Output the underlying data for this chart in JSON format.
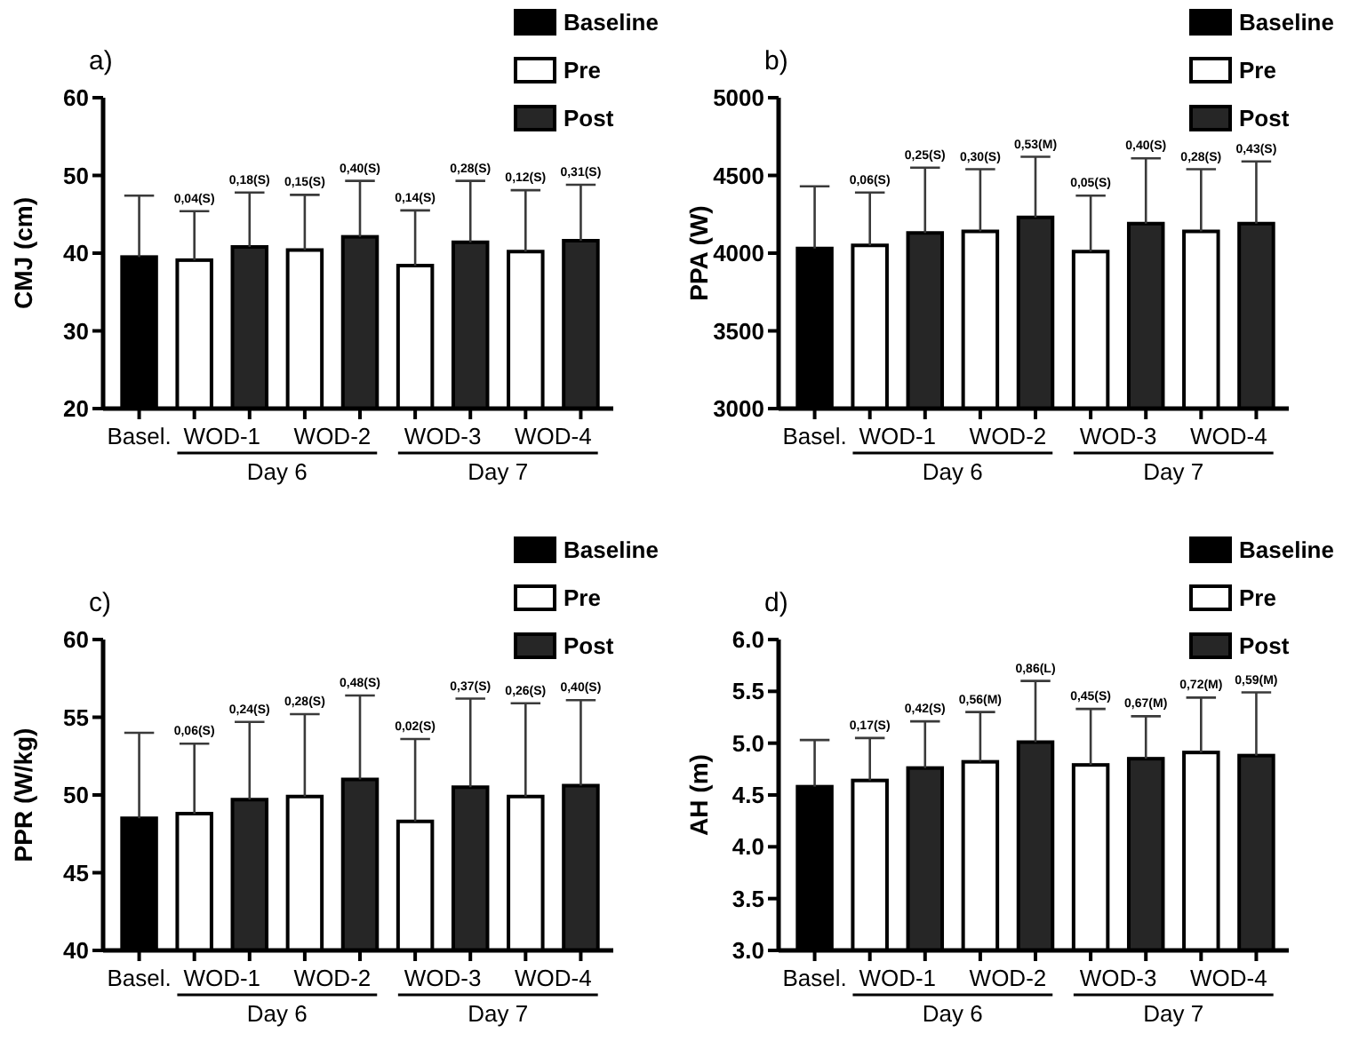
{
  "chart_data": [
    {
      "type": "bar",
      "title": "a)",
      "ylabel": "CMJ (cm)",
      "categories": [
        "Basel.",
        "WOD-1",
        "WOD-2",
        "WOD-3",
        "WOD-4"
      ],
      "ylim": [
        20,
        60
      ],
      "yticks": [
        20,
        30,
        40,
        50,
        60
      ],
      "legend": "top right",
      "annotations": [
        "Day 6",
        "Day 7",
        "0,04(S)",
        "0,18(S)",
        "0,15(S)",
        "0,40(S)",
        "0,14(S)",
        "0,28(S)",
        "0,12(S)",
        "0,31(S)"
      ],
      "series": [
        {
          "name": "Baseline",
          "color": "#000000",
          "values": [
            39.5,
            null,
            null,
            null,
            null
          ],
          "errors": [
            7.9,
            null,
            null,
            null,
            null
          ]
        },
        {
          "name": "Pre",
          "color": "#ffffff",
          "values": [
            null,
            39.1,
            40.4,
            38.4,
            40.2
          ],
          "errors": [
            null,
            6.3,
            7.1,
            7.1,
            7.9
          ]
        },
        {
          "name": "Post",
          "color": "#262626",
          "values": [
            null,
            40.8,
            42.1,
            41.4,
            41.6
          ],
          "errors": [
            null,
            7.0,
            7.2,
            7.9,
            7.2
          ]
        }
      ]
    },
    {
      "type": "bar",
      "title": "b)",
      "ylabel": "PPA (W)",
      "categories": [
        "Basel.",
        "WOD-1",
        "WOD-2",
        "WOD-3",
        "WOD-4"
      ],
      "ylim": [
        3000,
        5000
      ],
      "yticks": [
        3000,
        3500,
        4000,
        4500,
        5000
      ],
      "legend": "top right",
      "annotations": [
        "Day 6",
        "Day 7",
        "0,06(S)",
        "0,25(S)",
        "0,30(S)",
        "0,53(M)",
        "0,05(S)",
        "0,40(S)",
        "0,28(S)",
        "0,43(S)"
      ],
      "series": [
        {
          "name": "Baseline",
          "color": "#000000",
          "values": [
            4030,
            null,
            null,
            null,
            null
          ],
          "errors": [
            400,
            null,
            null,
            null,
            null
          ]
        },
        {
          "name": "Pre",
          "color": "#ffffff",
          "values": [
            null,
            4050,
            4140,
            4010,
            4140
          ],
          "errors": [
            null,
            340,
            400,
            360,
            400
          ]
        },
        {
          "name": "Post",
          "color": "#262626",
          "values": [
            null,
            4130,
            4230,
            4190,
            4190
          ],
          "errors": [
            null,
            420,
            390,
            420,
            400
          ]
        }
      ]
    },
    {
      "type": "bar",
      "title": "c)",
      "ylabel": "PPR (W/kg)",
      "categories": [
        "Basel.",
        "WOD-1",
        "WOD-2",
        "WOD-3",
        "WOD-4"
      ],
      "ylim": [
        40,
        60
      ],
      "yticks": [
        40,
        45,
        50,
        55,
        60
      ],
      "legend": "top right",
      "annotations": [
        "Day 6",
        "Day 7",
        "0,06(S)",
        "0,24(S)",
        "0,28(S)",
        "0,48(S)",
        "0,02(S)",
        "0,37(S)",
        "0,26(S)",
        "0,40(S)"
      ],
      "series": [
        {
          "name": "Baseline",
          "color": "#000000",
          "values": [
            48.5,
            null,
            null,
            null,
            null
          ],
          "errors": [
            5.5,
            null,
            null,
            null,
            null
          ]
        },
        {
          "name": "Pre",
          "color": "#ffffff",
          "values": [
            null,
            48.8,
            49.9,
            48.3,
            49.9
          ],
          "errors": [
            null,
            4.5,
            5.3,
            5.3,
            6.0
          ]
        },
        {
          "name": "Post",
          "color": "#262626",
          "values": [
            null,
            49.7,
            51.0,
            50.5,
            50.6
          ],
          "errors": [
            null,
            5.0,
            5.4,
            5.7,
            5.5
          ]
        }
      ]
    },
    {
      "type": "bar",
      "title": "d)",
      "ylabel": "AH (m)",
      "categories": [
        "Basel.",
        "WOD-1",
        "WOD-2",
        "WOD-3",
        "WOD-4"
      ],
      "ylim": [
        3,
        6
      ],
      "yticks": [
        {
          "value": 3,
          "label": "3.0"
        },
        3.5,
        {
          "value": 4,
          "label": "4.0"
        },
        4.5,
        {
          "value": 5,
          "label": "5.0"
        },
        5.5,
        {
          "value": 6,
          "label": "6.0"
        }
      ],
      "legend": "top right",
      "annotations": [
        "Day 6",
        "Day 7",
        "0,17(S)",
        "0,42(S)",
        "0,56(M)",
        "0,86(L)",
        "0,45(S)",
        "0,67(M)",
        "0,72(M)",
        "0,59(M)"
      ],
      "series": [
        {
          "name": "Baseline",
          "color": "#000000",
          "values": [
            4.58,
            null,
            null,
            null,
            null
          ],
          "errors": [
            0.45,
            null,
            null,
            null,
            null
          ]
        },
        {
          "name": "Pre",
          "color": "#ffffff",
          "values": [
            null,
            4.64,
            4.82,
            4.79,
            4.91
          ],
          "errors": [
            null,
            0.41,
            0.48,
            0.54,
            0.53
          ]
        },
        {
          "name": "Post",
          "color": "#262626",
          "values": [
            null,
            4.76,
            5.01,
            4.85,
            4.88
          ],
          "errors": [
            null,
            0.45,
            0.59,
            0.41,
            0.61
          ]
        }
      ]
    }
  ]
}
